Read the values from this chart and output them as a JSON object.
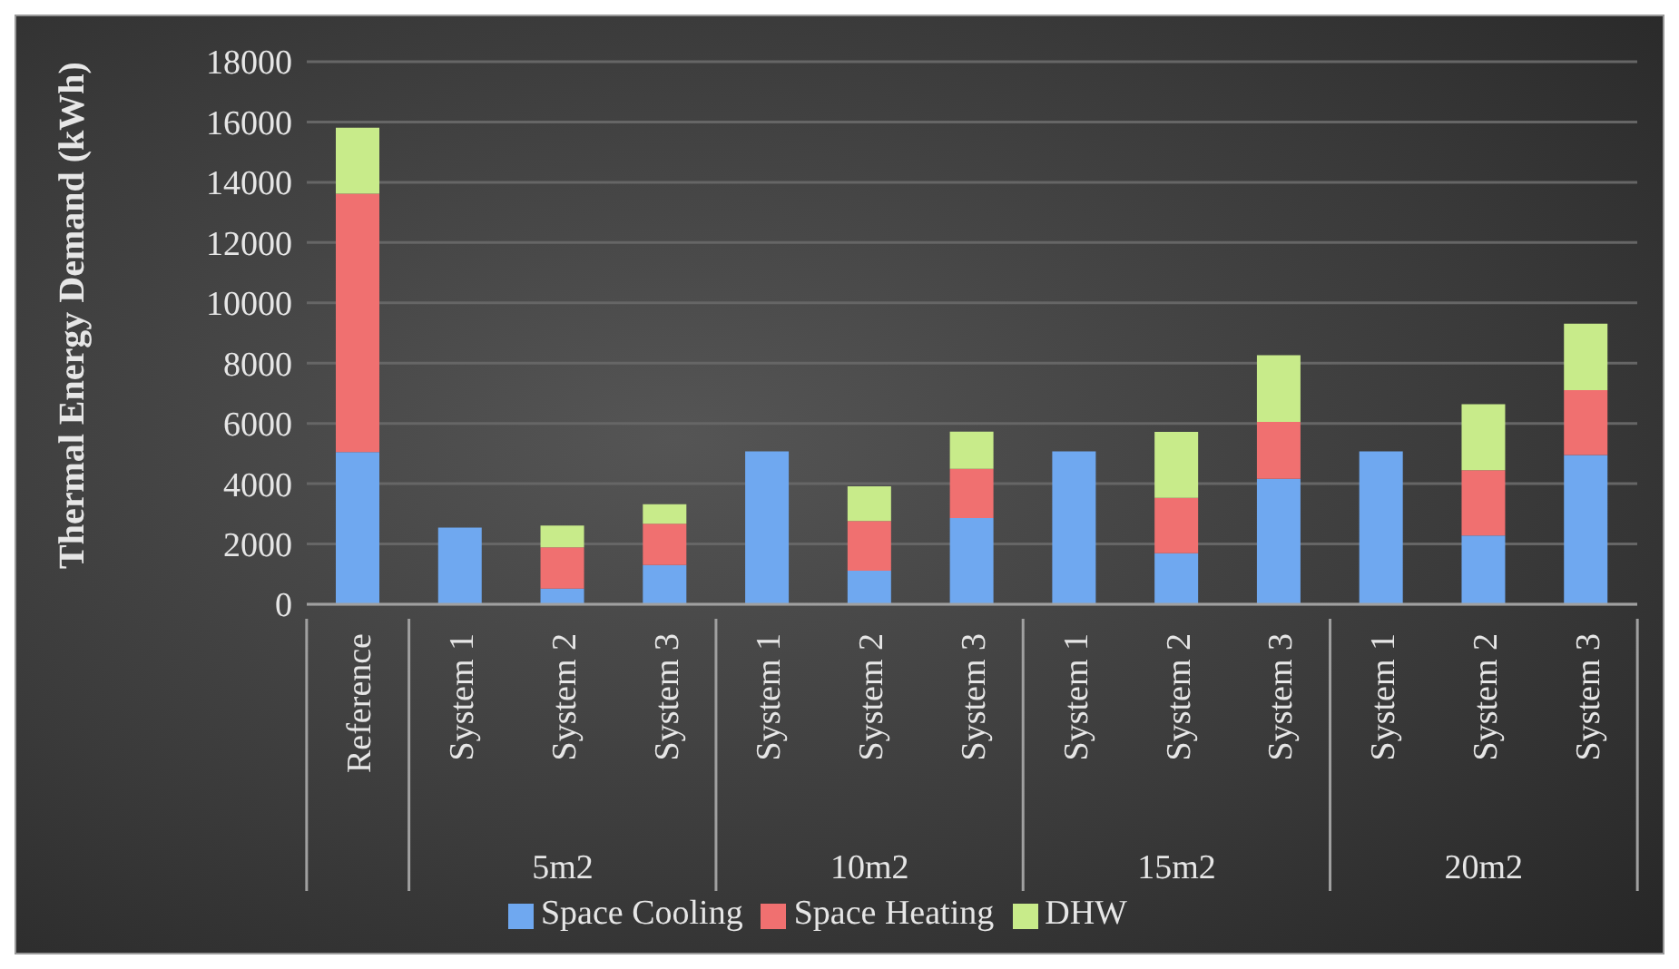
{
  "chart_data": {
    "type": "bar",
    "stacked": true,
    "ylabel": "Thermal Energy Demand (kWh)",
    "categories": [
      "Reference",
      "System 1",
      "System 2",
      "System 3",
      "System 1",
      "System 2",
      "System 3",
      "System 1",
      "System 2",
      "System 3",
      "System 1",
      "System 2",
      "System 3"
    ],
    "annotations": [
      "5m2",
      "10m2",
      "15m2",
      "20m2"
    ],
    "series": [
      {
        "name": "Space Cooling",
        "color": "#6fa8f0",
        "values": [
          5050,
          2540,
          520,
          1300,
          5070,
          1110,
          2860,
          5070,
          1690,
          4160,
          5070,
          2280,
          4950
        ]
      },
      {
        "name": "Space Heating",
        "color": "#f07070",
        "values": [
          8570,
          0,
          1370,
          1370,
          0,
          1650,
          1630,
          0,
          1840,
          1890,
          0,
          2170,
          2150
        ]
      },
      {
        "name": "DHW",
        "color": "#c8eb8a",
        "values": [
          2190,
          0,
          720,
          650,
          0,
          1150,
          1240,
          0,
          2190,
          2210,
          0,
          2190,
          2210
        ]
      }
    ],
    "ylim": [
      0,
      18000
    ],
    "yticks": [
      0,
      2000,
      4000,
      6000,
      8000,
      10000,
      12000,
      14000,
      16000,
      18000
    ],
    "grid": "y",
    "legend": "bottom"
  }
}
